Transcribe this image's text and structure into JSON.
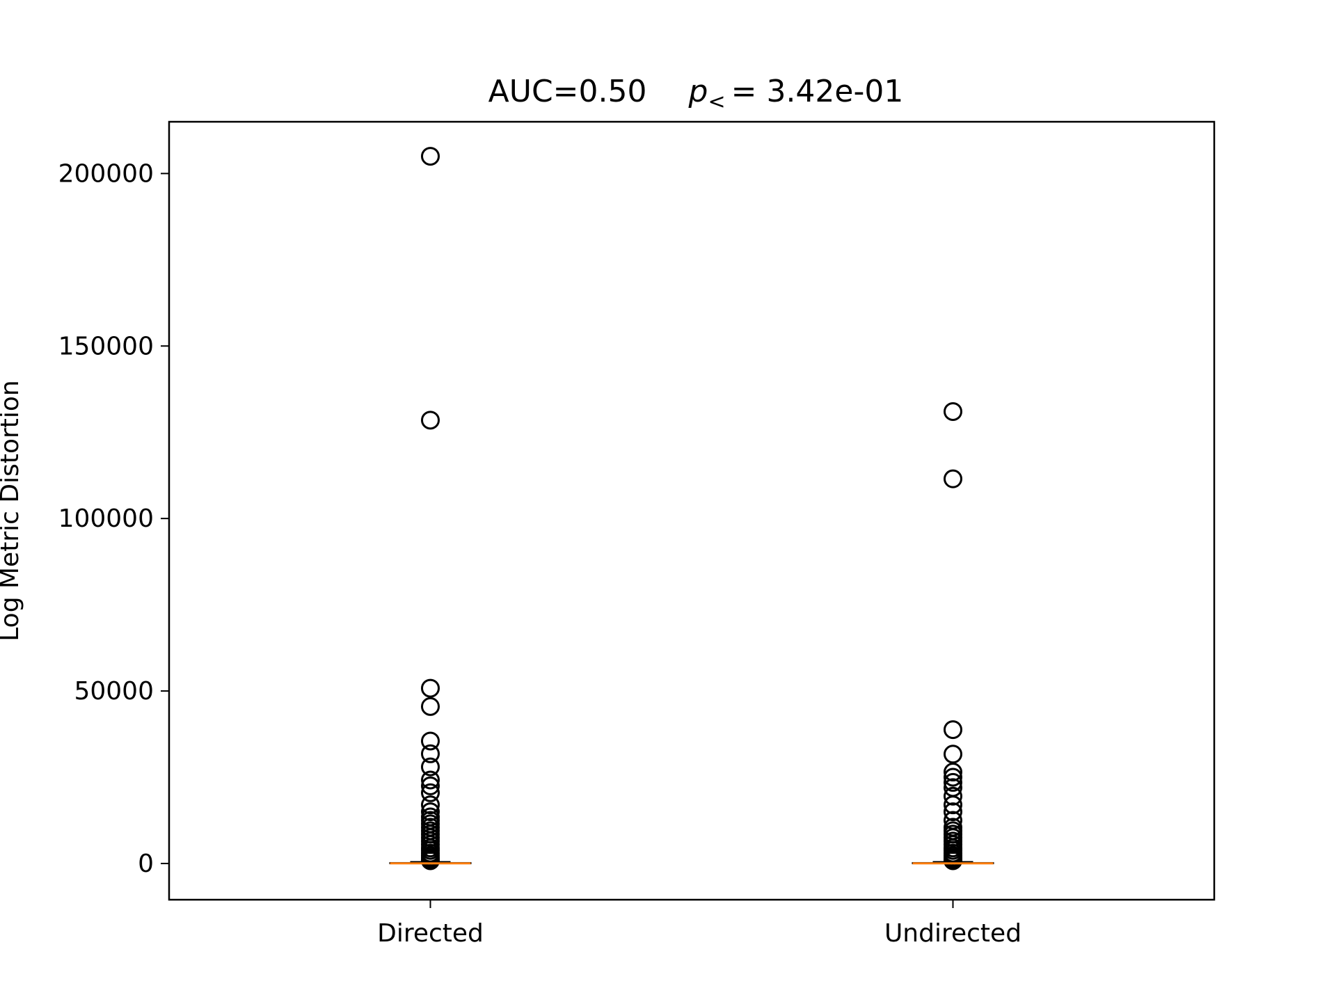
{
  "chart_data": {
    "type": "box",
    "title_auc": "AUC=0.50",
    "title_p_symbol": "p",
    "title_p_sub": "<",
    "title_p_value": "= 3.42e-01",
    "xlabel": "",
    "ylabel": "Log Metric Distortion",
    "ylim": [
      -10500,
      215000
    ],
    "yticks": [
      0,
      50000,
      100000,
      150000,
      200000
    ],
    "ytick_labels": [
      "0",
      "50000",
      "100000",
      "150000",
      "200000"
    ],
    "categories": [
      "Directed",
      "Undirected"
    ],
    "grid": false,
    "colors": {
      "median": "#ff7f0e",
      "box": "#000000",
      "flier": "#000000"
    },
    "series": [
      {
        "category": "Directed",
        "q1": 0,
        "median": 50,
        "q3": 200,
        "whisker_low": 0,
        "whisker_high": 500,
        "fliers": [
          205000,
          128500,
          50800,
          45500,
          35500,
          31800,
          28000,
          24200,
          22500,
          20500,
          17000,
          15000,
          13500,
          12500,
          11500,
          10500,
          9500,
          8500,
          7500,
          6500,
          5500,
          4500,
          3800,
          3000,
          2300,
          1700,
          1200,
          800
        ]
      },
      {
        "category": "Undirected",
        "q1": 0,
        "median": 50,
        "q3": 200,
        "whisker_low": 0,
        "whisker_high": 500,
        "fliers": [
          131000,
          111500,
          38800,
          31700,
          26500,
          25000,
          23500,
          22000,
          19500,
          17000,
          15000,
          12500,
          10500,
          9500,
          8500,
          7500,
          6500,
          5500,
          4500,
          3800,
          3000,
          2300,
          1700,
          1200,
          800
        ]
      }
    ]
  }
}
